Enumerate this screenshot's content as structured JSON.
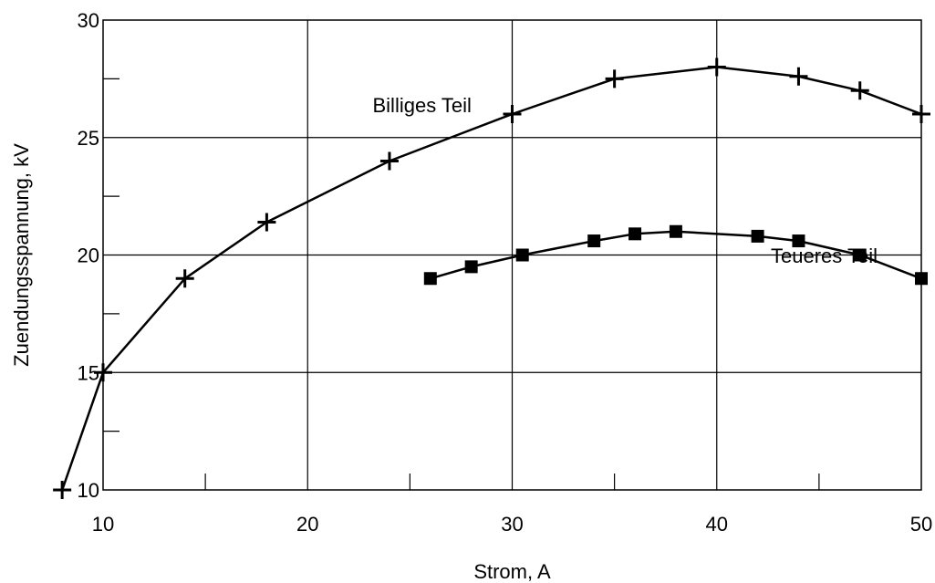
{
  "chart_data": {
    "type": "line",
    "xlabel": "Strom, A",
    "ylabel": "Zuendungsspannung, kV",
    "xlim": [
      10,
      50
    ],
    "ylim": [
      10,
      30
    ],
    "xticks": [
      10,
      20,
      30,
      40,
      50
    ],
    "yticks": [
      10,
      15,
      20,
      25,
      30
    ],
    "grid": true,
    "series": [
      {
        "name": "Billiges Teil",
        "marker": "plus",
        "x": [
          8,
          10,
          14,
          18,
          24,
          30,
          35,
          40,
          44,
          47,
          50
        ],
        "y": [
          10,
          15,
          19,
          21.4,
          24,
          26,
          27.5,
          28,
          27.6,
          27,
          26
        ]
      },
      {
        "name": "Teueres Teil",
        "marker": "square",
        "x": [
          26,
          28,
          30.5,
          34,
          36,
          38,
          42,
          44,
          47,
          50
        ],
        "y": [
          19,
          19.5,
          20,
          20.6,
          20.9,
          21,
          20.8,
          20.6,
          20,
          19
        ]
      }
    ]
  }
}
